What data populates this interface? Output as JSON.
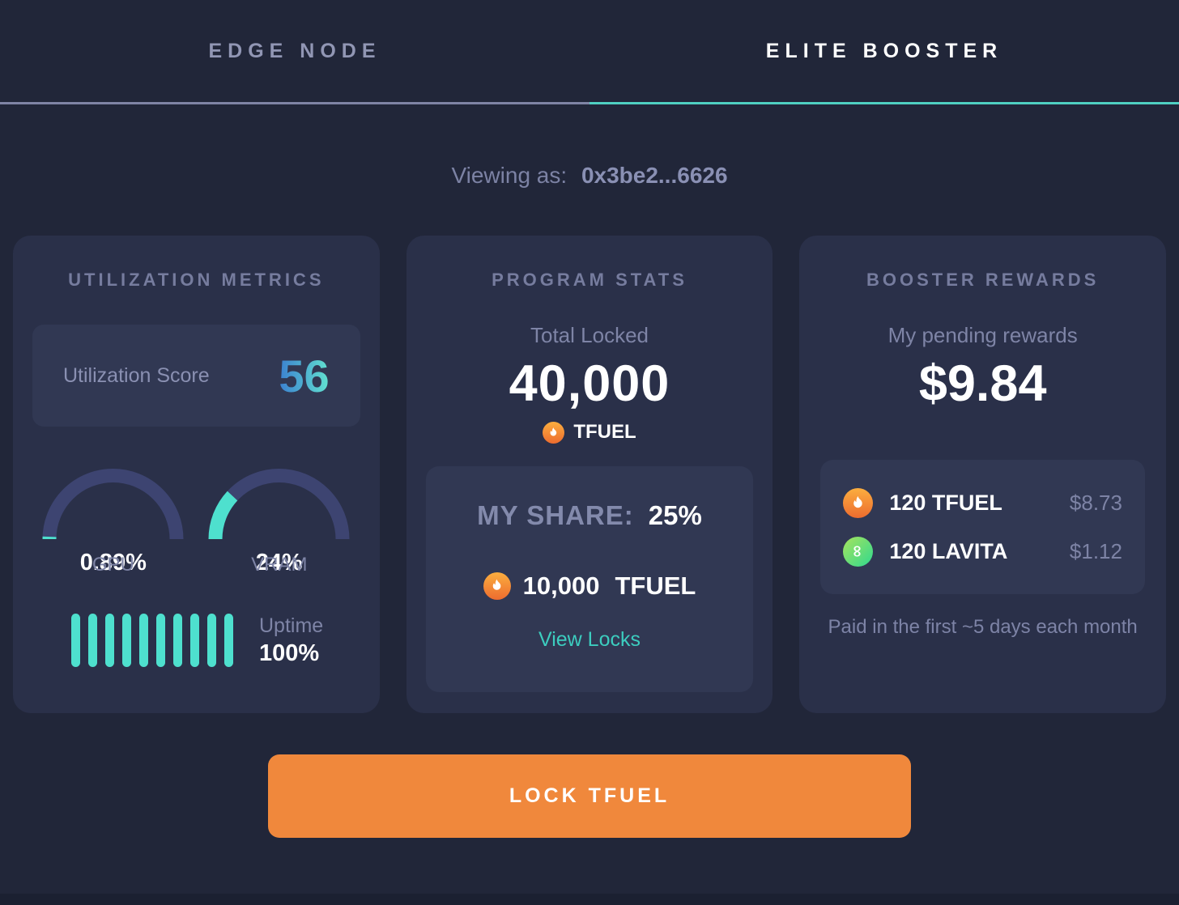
{
  "tabs": [
    {
      "label": "EDGE NODE",
      "active": false
    },
    {
      "label": "ELITE BOOSTER",
      "active": true
    }
  ],
  "viewing_as": {
    "label": "Viewing as:",
    "address": "0x3be2...6626"
  },
  "cards": {
    "utilization": {
      "title": "UTILIZATION METRICS",
      "score_label": "Utilization Score",
      "score_value": "56",
      "gauges": [
        {
          "label": "GPU",
          "value": "0.89%",
          "percent": 0.89
        },
        {
          "label": "VRAM",
          "value": "24%",
          "percent": 24
        }
      ],
      "uptime": {
        "label": "Uptime",
        "value": "100%",
        "bars": 10
      }
    },
    "program": {
      "title": "PROGRAM STATS",
      "total_locked_label": "Total Locked",
      "total_locked_value": "40,000",
      "token": "TFUEL",
      "share_label": "MY SHARE:",
      "share_value": "25%",
      "locked_amount": "10,000",
      "locked_token": "TFUEL",
      "view_locks_label": "View Locks"
    },
    "rewards": {
      "title": "BOOSTER REWARDS",
      "pending_label": "My pending rewards",
      "pending_value": "$9.84",
      "items": [
        {
          "icon": "tfuel-icon",
          "amount": "120 TFUEL",
          "usd": "$8.73"
        },
        {
          "icon": "lavita-icon",
          "amount": "120 LAVITA",
          "usd": "$1.12"
        }
      ],
      "note": "Paid in the first ~5 days each month"
    }
  },
  "button": {
    "label": "LOCK TFUEL"
  },
  "icons": {
    "lavita_glyph": "∞"
  },
  "colors": {
    "background": "#212639",
    "card": "#2A3049",
    "panel": "#313853",
    "teal": "#4EE0CE",
    "link_teal": "#3CCDBF",
    "active_tab_underline": "#4FCFC2",
    "inactive_tab_underline": "#7F84A5",
    "gauge_track": "#3D4471",
    "button_orange": "#F0883C",
    "score_gradient_start": "#3B7FD0",
    "score_gradient_end": "#62E2D0"
  }
}
